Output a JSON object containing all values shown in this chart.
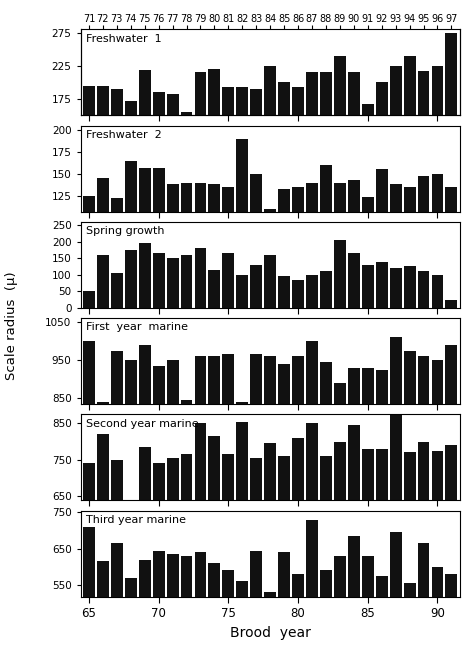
{
  "brood_years": [
    65,
    66,
    67,
    68,
    69,
    70,
    71,
    72,
    73,
    74,
    75,
    76,
    77,
    78,
    79,
    80,
    81,
    82,
    83,
    84,
    85,
    86,
    87,
    88,
    89,
    90,
    91
  ],
  "top_labels": [
    "71",
    "72",
    "73",
    "74",
    "75",
    "76",
    "77",
    "78",
    "79",
    "80",
    "81",
    "82",
    "83",
    "84",
    "85",
    "86",
    "87",
    "88",
    "89",
    "90",
    "91",
    "92",
    "93",
    "94",
    "95",
    "96",
    "97"
  ],
  "fw1": [
    195,
    195,
    190,
    172,
    218,
    185,
    182,
    155,
    215,
    220,
    193,
    193,
    190,
    225,
    200,
    193,
    215,
    215,
    240,
    215,
    167,
    200,
    225,
    240,
    217,
    225,
    275
  ],
  "fw2": [
    125,
    145,
    122,
    165,
    157,
    157,
    138,
    140,
    140,
    138,
    135,
    190,
    150,
    110,
    133,
    135,
    140,
    160,
    140,
    143,
    124,
    155,
    138,
    135,
    148,
    150,
    135
  ],
  "spring": [
    50,
    160,
    105,
    175,
    195,
    165,
    150,
    160,
    180,
    115,
    165,
    100,
    130,
    160,
    95,
    85,
    100,
    110,
    205,
    165,
    130,
    140,
    120,
    125,
    110,
    100,
    25
  ],
  "fy_marine": [
    1000,
    840,
    975,
    950,
    990,
    935,
    950,
    845,
    960,
    960,
    965,
    840,
    965,
    960,
    940,
    960,
    1000,
    945,
    890,
    930,
    930,
    925,
    1010,
    975,
    960,
    950,
    990
  ],
  "sy_marine": [
    740,
    820,
    750,
    630,
    785,
    740,
    755,
    765,
    850,
    815,
    765,
    855,
    755,
    795,
    760,
    810,
    850,
    760,
    800,
    845,
    780,
    780,
    880,
    770,
    800,
    775,
    790
  ],
  "ty_marine": [
    710,
    615,
    665,
    570,
    620,
    645,
    635,
    630,
    640,
    610,
    590,
    560,
    645,
    530,
    640,
    580,
    730,
    590,
    630,
    685,
    630,
    575,
    695,
    555,
    665,
    600,
    580
  ],
  "fw1_ylim": [
    150,
    280
  ],
  "fw1_yticks": [
    175,
    225,
    275
  ],
  "fw2_ylim": [
    107,
    205
  ],
  "fw2_yticks": [
    125,
    150,
    175,
    200
  ],
  "spring_ylim": [
    0,
    260
  ],
  "spring_yticks": [
    0,
    50,
    100,
    150,
    200,
    250
  ],
  "fym_ylim": [
    835,
    1060
  ],
  "fym_yticks": [
    850,
    950,
    1050
  ],
  "sym_ylim": [
    638,
    875
  ],
  "sym_yticks": [
    650,
    750,
    850
  ],
  "tym_ylim": [
    518,
    755
  ],
  "tym_yticks": [
    550,
    650,
    750
  ],
  "bar_color": "#111111",
  "bg_color": "#ffffff",
  "ylabel": "Scale radius  (μ)",
  "xlabel": "Brood  year",
  "subplot_labels": [
    "Freshwater  1",
    "Freshwater  2",
    "Spring growth",
    "First  year  marine",
    "Second year marine",
    "Third year marine"
  ]
}
